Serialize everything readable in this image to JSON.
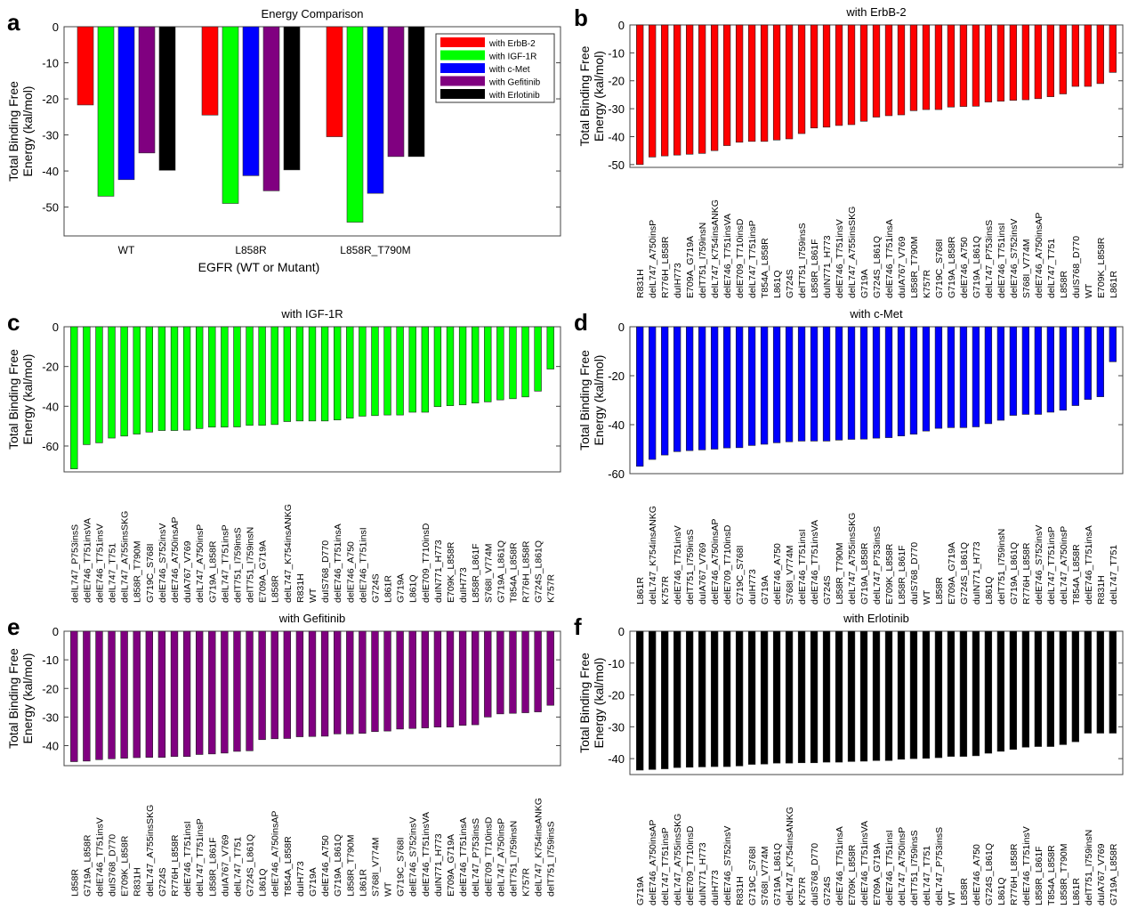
{
  "chart_data": [
    {
      "id": "a",
      "panel_label": "a",
      "type": "bar",
      "title": "Energy Comparison",
      "xlabel": "EGFR (WT or Mutant)",
      "ylabel_lines": [
        "Total Binding Free",
        "Energy (kal/mol)"
      ],
      "ylim": [
        -58,
        0
      ],
      "yticks": [
        0,
        -10,
        -20,
        -30,
        -40,
        -50
      ],
      "grid": false,
      "legend_position": "top-right",
      "categories": [
        "WT",
        "L858R",
        "L858R_T790M"
      ],
      "series": [
        {
          "name": "with ErbB-2",
          "color": "#ff0000",
          "values": [
            -21.7,
            -24.5,
            -30.5
          ]
        },
        {
          "name": "with IGF-1R",
          "color": "#00ff00",
          "values": [
            -47.0,
            -49.0,
            -54.2
          ]
        },
        {
          "name": "with c-Met",
          "color": "#0000ff",
          "values": [
            -42.4,
            -41.3,
            -46.2
          ]
        },
        {
          "name": "with Gefitinib",
          "color": "#800080",
          "values": [
            -35.0,
            -45.5,
            -36.0
          ]
        },
        {
          "name": "with Erlotinib",
          "color": "#000000",
          "values": [
            -39.8,
            -39.7,
            -36.0
          ]
        }
      ]
    },
    {
      "id": "b",
      "panel_label": "b",
      "type": "bar",
      "title": "with ErbB-2",
      "color": "#ff0000",
      "ylabel_lines": [
        "Total Binding Free",
        "Energy (kal/mol)"
      ],
      "ylim": [
        -51,
        0
      ],
      "yticks": [
        0,
        -10,
        -20,
        -30,
        -40,
        -50
      ],
      "categories": [
        "R831H",
        "delL747_A750insP",
        "R776H_L858R",
        "duIH773",
        "E709A_G719A",
        "delT751_I759insN",
        "delL747_K754insANKG",
        "delE746_T751insVA",
        "delE709_T710insD",
        "delL747_T751insP",
        "T854A_L858R",
        "L861Q",
        "G724S",
        "delT751_I759insS",
        "L858R_L861F",
        "duIN771_H773",
        "delE746_T751insV",
        "delL747_A755insSKG",
        "G719A",
        "G724S_L861Q",
        "delE746_T751insA",
        "duIA767_V769",
        "L858R_T790M",
        "K757R",
        "G719C_S768I",
        "G719A_L858R",
        "delE746_A750",
        "G719A_L861Q",
        "delL747_P753insS",
        "delE746_T751insI",
        "delE746_S752insV",
        "S768I_V774M",
        "delE746_A750insAP",
        "delL747_T751",
        "L858R",
        "duIS768_D770",
        "WT",
        "E709K_L858R",
        "L861R"
      ],
      "values": [
        -50.0,
        -47.3,
        -46.9,
        -46.6,
        -46.3,
        -46.0,
        -45.0,
        -43.2,
        -42.0,
        -41.7,
        -41.7,
        -41.2,
        -40.8,
        -38.9,
        -36.9,
        -36.6,
        -36.0,
        -35.7,
        -34.5,
        -33.0,
        -32.5,
        -32.2,
        -30.7,
        -30.3,
        -30.3,
        -29.4,
        -29.2,
        -29.1,
        -27.6,
        -27.3,
        -27.0,
        -26.8,
        -26.4,
        -25.7,
        -24.7,
        -22.0,
        -22.0,
        -21.0,
        -17.0
      ]
    },
    {
      "id": "c",
      "panel_label": "c",
      "type": "bar",
      "title": "with IGF-1R",
      "color": "#00ff00",
      "ylabel_lines": [
        "Total Binding Free",
        "Energy (kal/mol)"
      ],
      "ylim": [
        -73,
        0
      ],
      "yticks": [
        0,
        -20,
        -40,
        -60
      ],
      "categories": [
        "delL747_P753insS",
        "delE746_T751insVA",
        "delE746_T751insV",
        "delL747_T751",
        "delL747_A755insSKG",
        "L858R_T790M",
        "G719C_S768I",
        "delE746_S752insV",
        "delE746_A750insAP",
        "duIA767_V769",
        "delL747_A750insP",
        "G719A_L858R",
        "delL747_T751insP",
        "delT751_I759insS",
        "delT751_I759insN",
        "E709A_G719A",
        "L858R",
        "delL747_K754insANKG",
        "R831H",
        "WT",
        "duIS768_D770",
        "delE746_T751insA",
        "delE746_A750",
        "delE746_T751insI",
        "G724S",
        "L861R",
        "G719A",
        "L861Q",
        "delE709_T710insD",
        "duIN771_H773",
        "E709K_L858R",
        "duIH773",
        "L858R_L861F",
        "S768I_V774M",
        "G719A_L861Q",
        "T854A_L858R",
        "R776H_L858R",
        "G724S_L861Q",
        "K757R"
      ],
      "values": [
        -71.5,
        -59.3,
        -58.4,
        -56.0,
        -55.0,
        -54.0,
        -53.0,
        -52.2,
        -52.2,
        -52.0,
        -51.2,
        -50.5,
        -50.5,
        -50.4,
        -49.6,
        -49.6,
        -49.2,
        -47.7,
        -47.4,
        -47.4,
        -47.4,
        -46.9,
        -46.0,
        -45.0,
        -44.7,
        -44.4,
        -44.4,
        -43.0,
        -43.0,
        -40.2,
        -39.7,
        -39.3,
        -38.4,
        -37.8,
        -36.8,
        -36.2,
        -35.3,
        -32.4,
        -21.3
      ]
    },
    {
      "id": "d",
      "panel_label": "d",
      "type": "bar",
      "title": "with c-Met",
      "color": "#0000ff",
      "ylabel_lines": [
        "Total Binding Free",
        "Energy (kal/mol)"
      ],
      "ylim": [
        -60,
        0
      ],
      "yticks": [
        0,
        -20,
        -40,
        -60
      ],
      "categories": [
        "L861R",
        "delL747_K754insANKG",
        "K757R",
        "delE746_T751insV",
        "delT751_I759insS",
        "duIA767_V769",
        "delE746_A750insAP",
        "delE709_T710insD",
        "G719C_S768I",
        "duIH773",
        "G719A",
        "delE746_A750",
        "S768I_V774M",
        "delE746_T751insI",
        "delE746_T751insVA",
        "G724S",
        "L858R_T790M",
        "delL747_A755insSKG",
        "G719A_L858R",
        "delL747_P753insS",
        "E709K_L858R",
        "L858R_L861F",
        "duIS768_D770",
        "WT",
        "L858R",
        "E709A_G719A",
        "G724S_L861Q",
        "duIN771_H773",
        "L861Q",
        "delT751_I759insN",
        "G719A_L861Q",
        "R776H_L858R",
        "delE746_S752insV",
        "delL747_T751insP",
        "delL747_A750insP",
        "T854A_L858R",
        "delE746_T751insA",
        "R831H",
        "delL747_T751"
      ],
      "values": [
        -57.0,
        -54.2,
        -52.4,
        -51.0,
        -50.6,
        -50.3,
        -50.0,
        -49.5,
        -49.4,
        -48.5,
        -48.0,
        -47.4,
        -47.0,
        -46.7,
        -46.7,
        -46.7,
        -46.3,
        -46.0,
        -45.9,
        -45.5,
        -45.3,
        -44.6,
        -43.9,
        -42.6,
        -41.5,
        -41.2,
        -41.2,
        -40.9,
        -39.6,
        -38.2,
        -36.2,
        -35.8,
        -35.8,
        -34.9,
        -34.1,
        -32.2,
        -29.7,
        -28.6,
        -14.3
      ]
    },
    {
      "id": "e",
      "panel_label": "e",
      "type": "bar",
      "title": "with Gefitinib",
      "color": "#800080",
      "ylabel_lines": [
        "Total Binding Free",
        "Energy (kal/mol)"
      ],
      "ylim": [
        -47,
        0
      ],
      "yticks": [
        0,
        -10,
        -20,
        -30,
        -40
      ],
      "categories": [
        "L858R",
        "G719A_L858R",
        "delE746_T751insV",
        "duIS768_D770",
        "E709K_L858R",
        "R831H",
        "delL747_A755insSKG",
        "G724S",
        "R776H_L858R",
        "delE746_T751insI",
        "delL747_T751insP",
        "L858R_L861F",
        "duIA767_V769",
        "delL747_T751",
        "G724S_L861Q",
        "L861Q",
        "delE746_A750insAP",
        "T854A_L858R",
        "duIH773",
        "G719A",
        "delE746_A750",
        "G719A_L861Q",
        "L858R_T790M",
        "L861R",
        "S768I_V774M",
        "WT",
        "G719C_S768I",
        "delE746_S752insV",
        "delE746_T751insVA",
        "duIN771_H773",
        "E709A_G719A",
        "delE746_T751insA",
        "delL747_P753insS",
        "delE709_T710insD",
        "delL747_A750insP",
        "delT751_I759insN",
        "K757R",
        "delL747_K754insANKG",
        "delT751_I759insS"
      ],
      "values": [
        -45.6,
        -45.4,
        -44.9,
        -44.6,
        -44.4,
        -44.2,
        -44.1,
        -44.1,
        -43.8,
        -43.8,
        -43.1,
        -42.9,
        -42.6,
        -42.0,
        -41.8,
        -37.9,
        -37.6,
        -37.5,
        -36.9,
        -36.8,
        -36.7,
        -35.9,
        -35.9,
        -35.7,
        -35.1,
        -34.9,
        -34.2,
        -34.0,
        -33.8,
        -33.5,
        -33.5,
        -32.9,
        -32.7,
        -30.0,
        -28.9,
        -28.7,
        -28.5,
        -28.2,
        -25.9
      ]
    },
    {
      "id": "f",
      "panel_label": "f",
      "type": "bar",
      "title": "with Erlotinib",
      "color": "#000000",
      "ylabel_lines": [
        "Total Binding Free",
        "Energy (kal/mol)"
      ],
      "ylim": [
        -45,
        0
      ],
      "yticks": [
        0,
        -10,
        -20,
        -30,
        -40
      ],
      "categories": [
        "G719A",
        "delE746_A750insAP",
        "delL747_T751insP",
        "delL747_A755insSKG",
        "delE709_T710insD",
        "duIN771_H773",
        "duIH773",
        "delE746_S752insV",
        "R831H",
        "G719C_S768I",
        "S768I_V774M",
        "G719A_L861Q",
        "delL747_K754insANKG",
        "K757R",
        "duIS768_D770",
        "G724S",
        "delE746_T751insA",
        "E709K_L858R",
        "delE746_T751insVA",
        "E709A_G719A",
        "delE746_T751insI",
        "delL747_A750insP",
        "delT751_I759insS",
        "delL747_T751",
        "delL747_P753insS",
        "WT",
        "L858R",
        "delE746_A750",
        "G724S_L861Q",
        "L861Q",
        "R776H_L858R",
        "delE746_T751insV",
        "L858R_L861F",
        "T854A_L858R",
        "L858R_T790M",
        "L861R",
        "delT751_I759insN",
        "duIA767_V769",
        "G719A_L858R"
      ],
      "values": [
        -43.6,
        -43.4,
        -43.2,
        -42.8,
        -42.7,
        -42.6,
        -42.5,
        -42.5,
        -42.3,
        -41.8,
        -41.7,
        -41.4,
        -41.4,
        -41.3,
        -41.3,
        -41.1,
        -41.1,
        -40.9,
        -40.8,
        -40.6,
        -40.6,
        -40.2,
        -40.0,
        -39.9,
        -39.7,
        -39.3,
        -39.3,
        -39.1,
        -38.3,
        -37.7,
        -37.1,
        -36.4,
        -36.2,
        -36.2,
        -35.6,
        -34.7,
        -32.0,
        -32.0,
        -32.0
      ]
    }
  ]
}
